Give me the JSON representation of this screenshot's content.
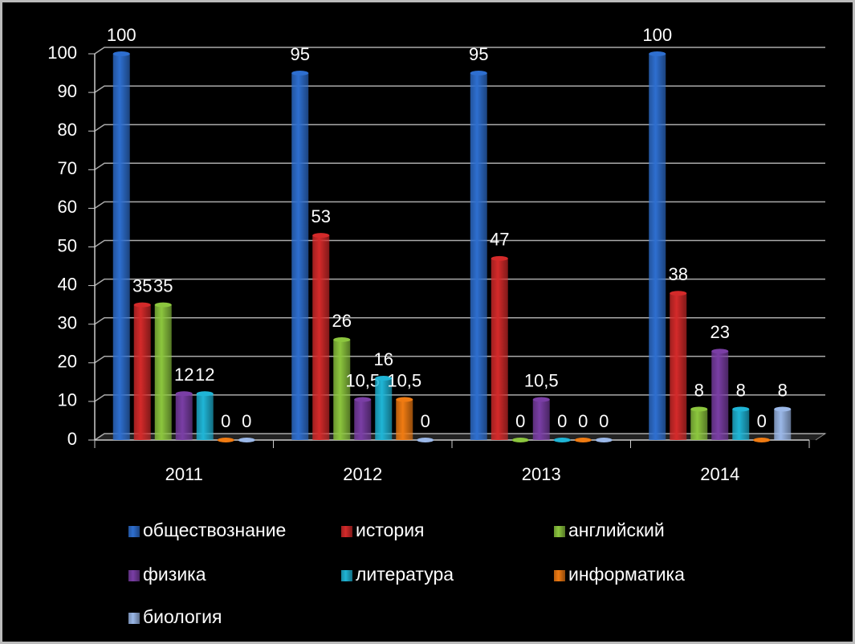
{
  "chart_data": {
    "type": "bar",
    "categories": [
      "2011",
      "2012",
      "2013",
      "2014"
    ],
    "series": [
      {
        "name": "обществознание",
        "color": "#2e6fd0",
        "values": [
          100,
          95,
          95,
          100
        ],
        "value_labels": [
          "100",
          "95",
          "95",
          "100"
        ]
      },
      {
        "name": "история",
        "color": "#d42a2a",
        "values": [
          35,
          53,
          47,
          38
        ],
        "value_labels": [
          "35",
          "53",
          "47",
          "38"
        ]
      },
      {
        "name": "английский",
        "color": "#8cc63e",
        "values": [
          35,
          26,
          0,
          8
        ],
        "value_labels": [
          "35",
          "26",
          "0",
          "8"
        ]
      },
      {
        "name": "физика",
        "color": "#7a3ea5",
        "values": [
          12,
          10.5,
          10.5,
          23
        ],
        "value_labels": [
          "12",
          "10,5",
          "10,5",
          "23"
        ]
      },
      {
        "name": "литература",
        "color": "#1fb5d6",
        "values": [
          12,
          16,
          0,
          8
        ],
        "value_labels": [
          "12",
          "16",
          "0",
          "8"
        ]
      },
      {
        "name": "информатика",
        "color": "#f07b12",
        "values": [
          0,
          10.5,
          0,
          0
        ],
        "value_labels": [
          "0",
          "10,5",
          "0",
          "0"
        ]
      },
      {
        "name": "биология",
        "color": "#9bb8e8",
        "values": [
          0,
          0,
          0,
          8
        ],
        "value_labels": [
          "0",
          "0",
          "0",
          "8"
        ]
      }
    ],
    "ylim": [
      0,
      100
    ],
    "yticks": [
      0,
      10,
      20,
      30,
      40,
      50,
      60,
      70,
      80,
      90,
      100
    ],
    "grid": true
  }
}
